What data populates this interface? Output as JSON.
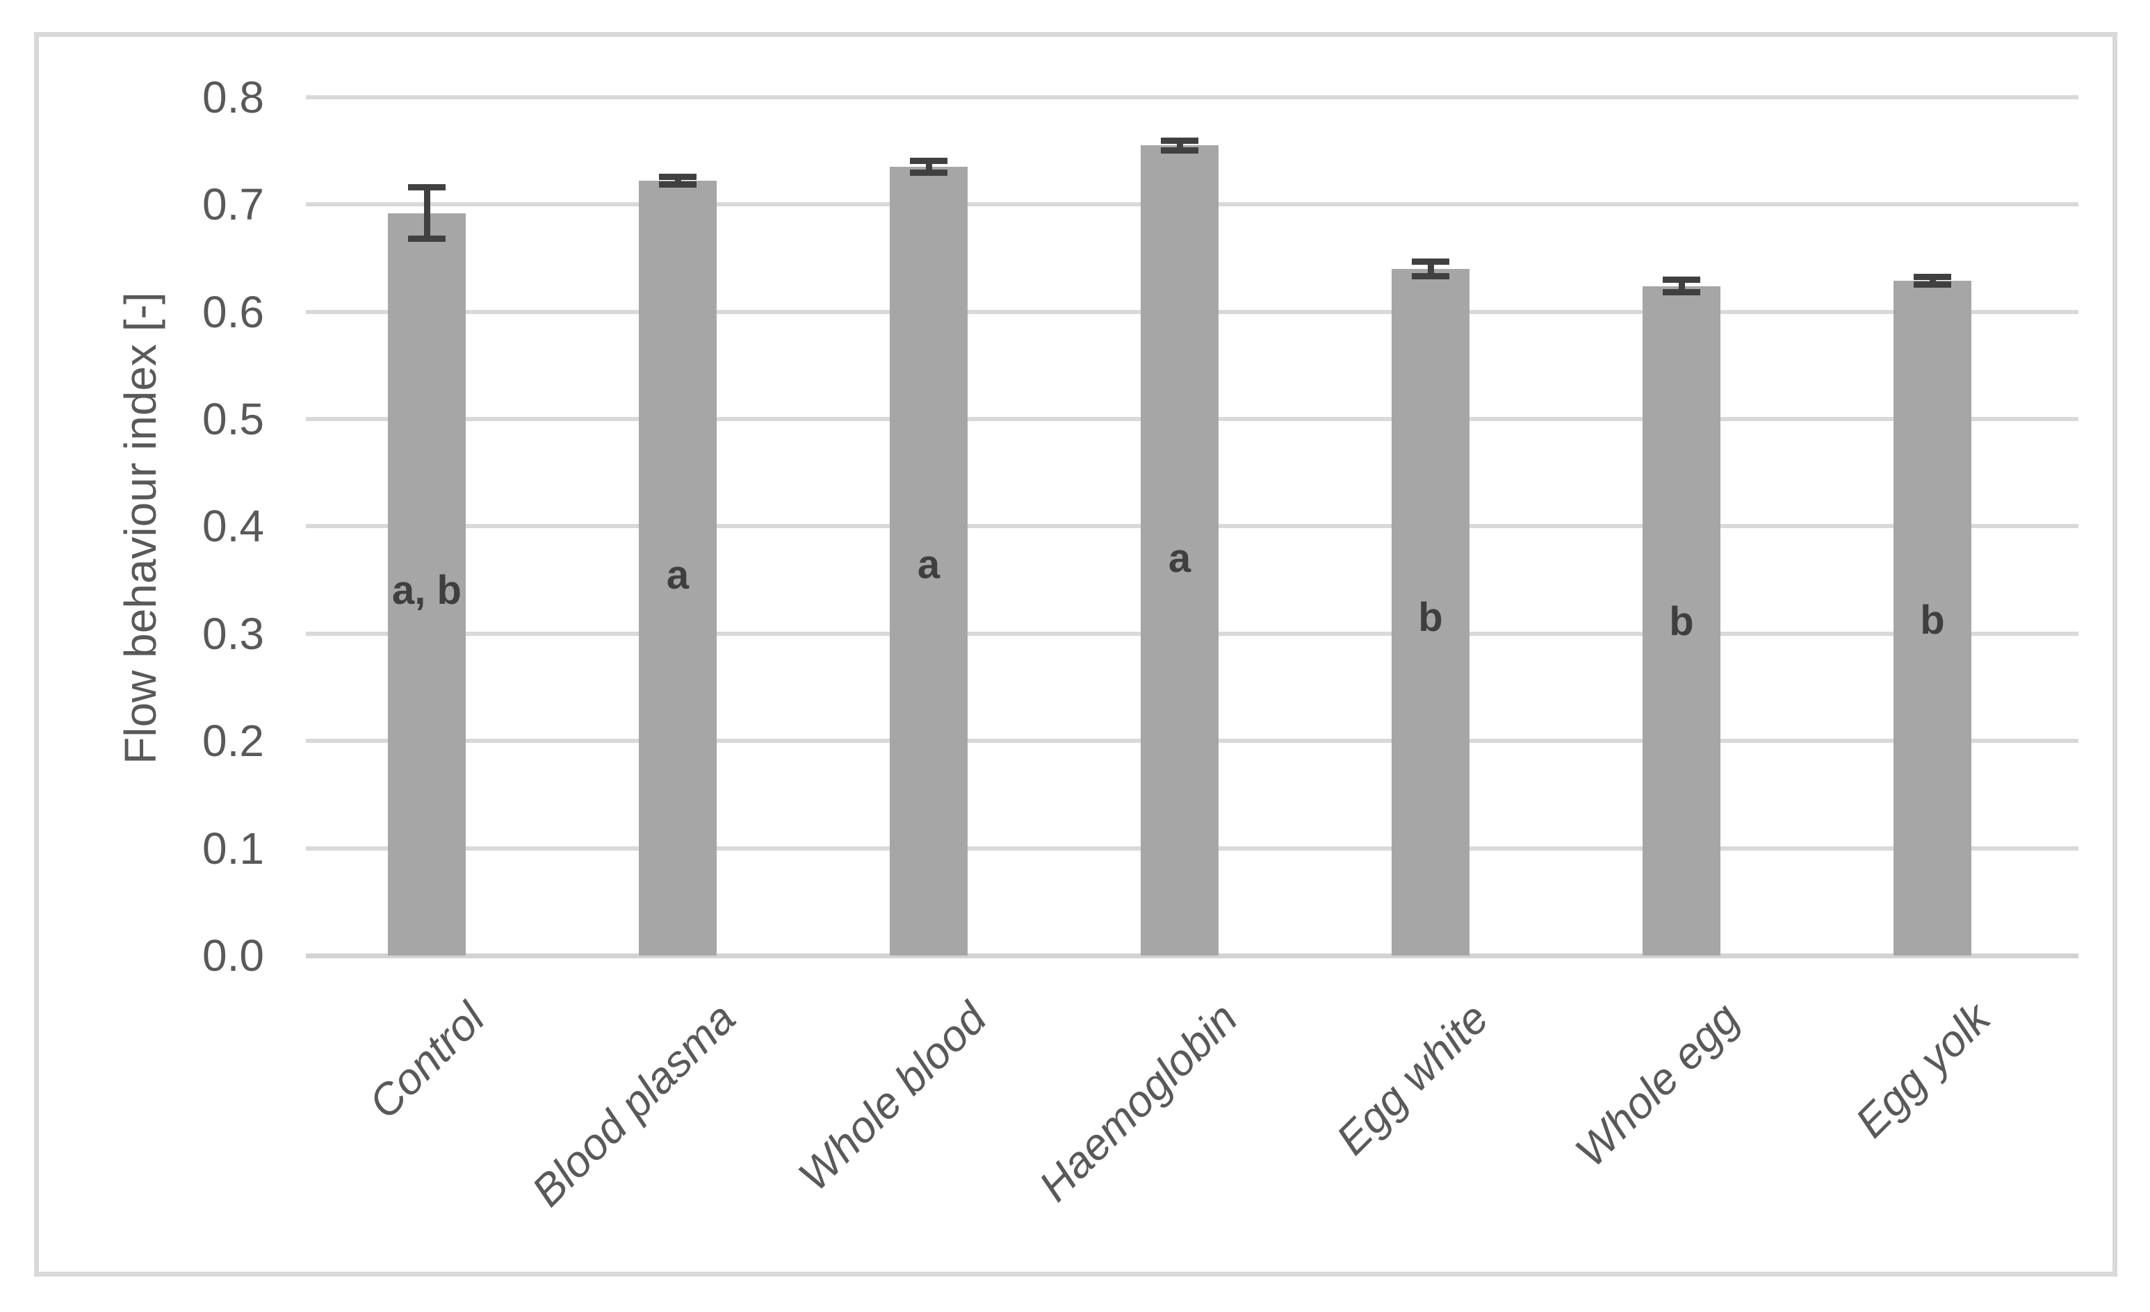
{
  "chart_data": {
    "type": "bar",
    "title": "",
    "xlabel": "",
    "ylabel": "Flow behaviour index [-]",
    "categories": [
      "Control",
      "Blood plasma",
      "Whole blood",
      "Haemoglobin",
      "Egg white",
      "Whole egg",
      "Egg yolk"
    ],
    "series": [
      {
        "name": "Flow behaviour index",
        "values": [
          0.692,
          0.722,
          0.735,
          0.755,
          0.64,
          0.624,
          0.629
        ],
        "error_bars": [
          0.024,
          0.004,
          0.006,
          0.005,
          0.007,
          0.006,
          0.004
        ]
      }
    ],
    "annotations": [
      {
        "text": "a, b",
        "category": "Control",
        "y": 0.34
      },
      {
        "text": "a",
        "category": "Blood plasma",
        "y": 0.354
      },
      {
        "text": "a",
        "category": "Whole blood",
        "y": 0.364
      },
      {
        "text": "a",
        "category": "Haemoglobin",
        "y": 0.37
      },
      {
        "text": "b",
        "category": "Egg white",
        "y": 0.315
      },
      {
        "text": "b",
        "category": "Whole egg",
        "y": 0.311
      },
      {
        "text": "b",
        "category": "Egg yolk",
        "y": 0.312
      }
    ],
    "ylim": [
      0.0,
      0.8
    ],
    "ytick_labels": [
      "0.0",
      "0.1",
      "0.2",
      "0.3",
      "0.4",
      "0.5",
      "0.6",
      "0.7",
      "0.8"
    ],
    "ytick_step": 0.1,
    "grid": true,
    "legend": false,
    "colors": {
      "bar_fill": "#a6a6a6",
      "error_bar": "#404040",
      "gridline": "#d9d9d9",
      "axis_line": "#d3d3d3",
      "axis_text": "#595959",
      "annotation_text": "#3f3f3f",
      "frame_border": "#d9d9d9",
      "background": "#ffffff"
    }
  }
}
